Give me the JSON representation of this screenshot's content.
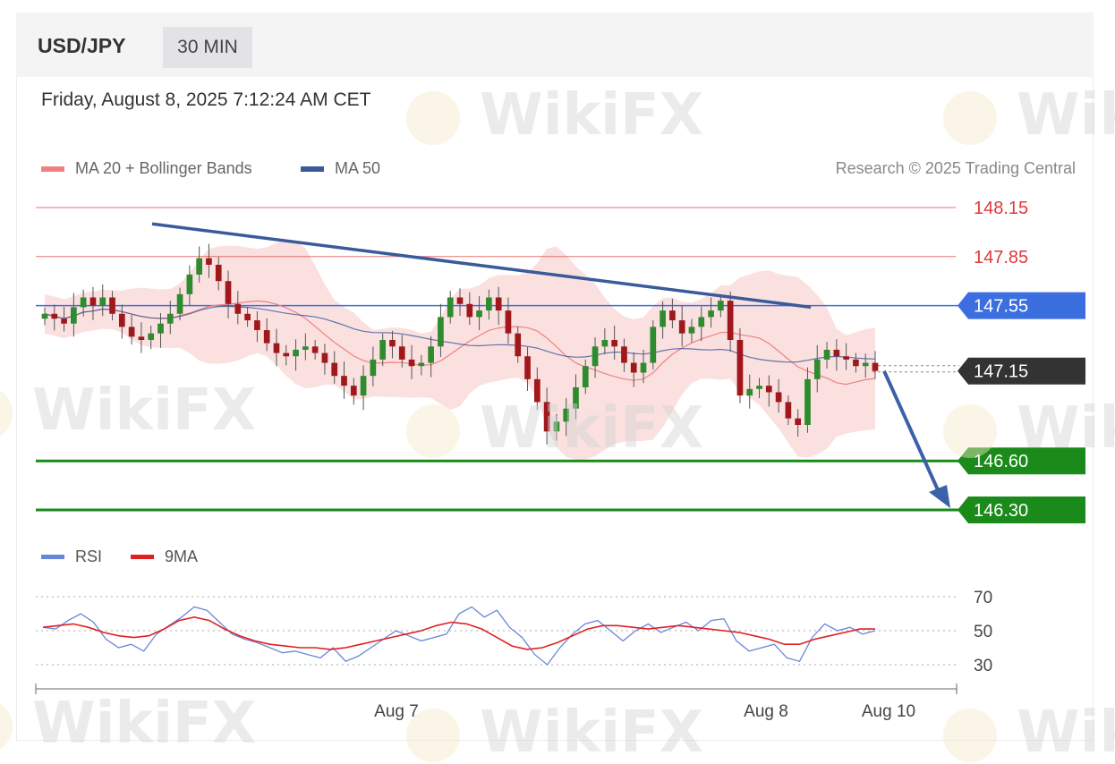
{
  "header": {
    "pair": "USD/JPY",
    "timeframe": "30 MIN"
  },
  "datetime": "Friday, August 8, 2025 7:12:24 AM CET",
  "legend": {
    "ma20": {
      "label": "MA 20 + Bollinger Bands",
      "color": "#f08080"
    },
    "ma50": {
      "label": "MA 50",
      "color": "#3a5a9a"
    }
  },
  "credit": "Research © 2025 Trading Central",
  "rsi_legend": {
    "rsi": {
      "label": "RSI",
      "color": "#6a86d8"
    },
    "ma9": {
      "label": "9MA",
      "color": "#e02020"
    }
  },
  "watermark": "WikiFX",
  "chart_data": [
    {
      "type": "candlestick",
      "y_range": [
        146.1,
        148.3
      ],
      "levels": [
        {
          "value": 148.15,
          "label": "148.15",
          "kind": "resistance",
          "color": "#e03a3a"
        },
        {
          "value": 147.85,
          "label": "147.85",
          "kind": "resistance",
          "color": "#e03a3a"
        },
        {
          "value": 147.55,
          "label": "147.55",
          "kind": "pivot",
          "color": "#3b6fe0"
        },
        {
          "value": 147.15,
          "label": "147.15",
          "kind": "last",
          "color": "#333333"
        },
        {
          "value": 146.6,
          "label": "146.60",
          "kind": "support",
          "color": "#1a8a1a"
        },
        {
          "value": 146.3,
          "label": "146.30",
          "kind": "support",
          "color": "#1a8a1a"
        }
      ],
      "x_ticks": [
        "Aug 7",
        "Aug 8",
        "Aug 10"
      ],
      "closes": [
        147.5,
        147.47,
        147.44,
        147.54,
        147.6,
        147.55,
        147.6,
        147.5,
        147.42,
        147.36,
        147.34,
        147.38,
        147.44,
        147.5,
        147.62,
        147.74,
        147.84,
        147.8,
        147.7,
        147.56,
        147.5,
        147.46,
        147.4,
        147.32,
        147.26,
        147.24,
        147.28,
        147.3,
        147.26,
        147.2,
        147.12,
        147.06,
        147.0,
        147.12,
        147.22,
        147.34,
        147.3,
        147.22,
        147.18,
        147.2,
        147.3,
        147.48,
        147.6,
        147.56,
        147.48,
        147.52,
        147.6,
        147.52,
        147.38,
        147.24,
        147.1,
        146.96,
        146.78,
        146.84,
        146.92,
        147.05,
        147.18,
        147.3,
        147.34,
        147.3,
        147.2,
        147.14,
        147.2,
        147.42,
        147.52,
        147.46,
        147.38,
        147.42,
        147.48,
        147.52,
        147.58,
        147.34,
        147.0,
        147.04,
        147.06,
        147.02,
        146.96,
        146.86,
        146.82,
        147.1,
        147.22,
        147.28,
        147.24,
        147.22,
        147.18,
        147.2,
        147.15
      ],
      "trendline": {
        "from": [
          148.05
        ],
        "to": [
          147.54
        ]
      },
      "forecast_target": 146.3
    },
    {
      "type": "line",
      "title": "RSI",
      "y_ticks": [
        70,
        50,
        30
      ],
      "series": [
        {
          "name": "RSI",
          "values": [
            52,
            51,
            56,
            60,
            55,
            45,
            40,
            42,
            38,
            48,
            53,
            58,
            64,
            62,
            55,
            48,
            45,
            43,
            40,
            37,
            38,
            36,
            34,
            40,
            32,
            35,
            40,
            45,
            50,
            47,
            44,
            46,
            48,
            60,
            64,
            58,
            62,
            52,
            46,
            36,
            30,
            40,
            48,
            54,
            56,
            50,
            44,
            50,
            54,
            49,
            52,
            55,
            50,
            56,
            57,
            44,
            38,
            40,
            42,
            34,
            32,
            46,
            54,
            50,
            52,
            48,
            50
          ]
        },
        {
          "name": "9MA",
          "values": [
            52,
            53,
            54,
            52,
            49,
            47,
            46,
            47,
            51,
            56,
            58,
            56,
            51,
            47,
            44,
            42,
            41,
            40,
            40,
            39,
            40,
            42,
            44,
            46,
            48,
            50,
            53,
            55,
            54,
            51,
            46,
            41,
            39,
            40,
            43,
            47,
            51,
            53,
            53,
            52,
            51,
            52,
            53,
            52,
            51,
            50,
            49,
            47,
            45,
            42,
            42,
            45,
            47,
            49,
            51,
            51
          ]
        }
      ]
    }
  ]
}
